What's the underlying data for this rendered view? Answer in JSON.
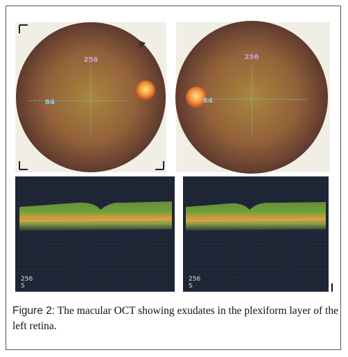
{
  "figure": {
    "fundus_images": [
      {
        "top_label": "256",
        "side_label": "64"
      },
      {
        "top_label": "256",
        "side_label": "64"
      }
    ],
    "oct_images": [
      {
        "scan_label": "256",
        "direction": "S"
      },
      {
        "scan_label": "256",
        "direction": "S"
      }
    ],
    "label": "Figure 2:",
    "caption": "The macular OCT showing exudates in the plexiform layer of the left retina."
  }
}
